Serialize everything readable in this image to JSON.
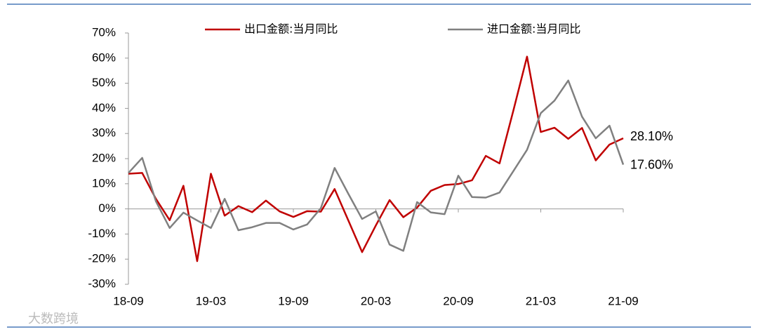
{
  "chart_data": {
    "type": "line",
    "categories": [
      "18-09",
      null,
      null,
      null,
      null,
      null,
      "19-03",
      null,
      null,
      null,
      null,
      null,
      "19-09",
      null,
      null,
      null,
      null,
      null,
      "20-03",
      null,
      null,
      null,
      null,
      null,
      "20-09",
      null,
      null,
      null,
      null,
      null,
      "21-03",
      null,
      null,
      null,
      null,
      null,
      "21-09"
    ],
    "series": [
      {
        "name": "出口金额:当月同比",
        "color": "#c00000",
        "values": [
          14,
          14.3,
          4,
          -4.5,
          9.2,
          -20.8,
          14,
          -2.7,
          1.1,
          -1.3,
          3.3,
          -1,
          -3.2,
          -0.9,
          -1.1,
          7.9,
          -4.6,
          -17.2,
          -6.6,
          3.5,
          -3.3,
          0.5,
          7.2,
          9.5,
          9.9,
          11.4,
          21.1,
          18.1,
          39,
          60.6,
          30.6,
          32.3,
          27.9,
          32.2,
          19.3,
          25.6,
          28.1
        ],
        "value_labels": [
          null,
          null,
          null,
          null,
          null,
          null,
          null,
          null,
          null,
          null,
          null,
          null,
          null,
          null,
          null,
          null,
          null,
          null,
          null,
          null,
          null,
          null,
          null,
          null,
          null,
          null,
          null,
          null,
          null,
          null,
          null,
          null,
          null,
          null,
          null,
          null,
          "28.10%"
        ]
      },
      {
        "name": "进口金额:当月同比",
        "color": "#808080",
        "values": [
          14.3,
          20.3,
          3,
          -7.6,
          -1.5,
          -4.6,
          -7.6,
          4,
          -8.5,
          -7.3,
          -5.6,
          -5.6,
          -8.2,
          -6.2,
          0.3,
          16.3,
          6,
          -4,
          -1,
          -14.2,
          -16.7,
          2.7,
          -1.4,
          -2.1,
          13.2,
          4.7,
          4.5,
          6.5,
          15,
          23.5,
          38.1,
          43.1,
          51.1,
          36.7,
          28.1,
          33.1,
          17.6
        ],
        "value_labels": [
          null,
          null,
          null,
          null,
          null,
          null,
          null,
          null,
          null,
          null,
          null,
          null,
          null,
          null,
          null,
          null,
          null,
          null,
          null,
          null,
          null,
          null,
          null,
          null,
          null,
          null,
          null,
          null,
          null,
          null,
          null,
          null,
          null,
          null,
          null,
          null,
          "17.60%"
        ]
      }
    ],
    "ylim": [
      -30,
      70
    ],
    "yticks": [
      {
        "value": -30,
        "label": "-30%"
      },
      {
        "value": -20,
        "label": "-20%"
      },
      {
        "value": -10,
        "label": "-10%"
      },
      {
        "value": 0,
        "label": "0%"
      },
      {
        "value": 10,
        "label": "10%"
      },
      {
        "value": 20,
        "label": "20%"
      },
      {
        "value": 30,
        "label": "30%"
      },
      {
        "value": 40,
        "label": "40%"
      },
      {
        "value": 50,
        "label": "50%"
      },
      {
        "value": 60,
        "label": "60%"
      },
      {
        "value": 70,
        "label": "70%"
      }
    ],
    "grid": false,
    "legend": "top",
    "watermark": "大数跨境"
  }
}
